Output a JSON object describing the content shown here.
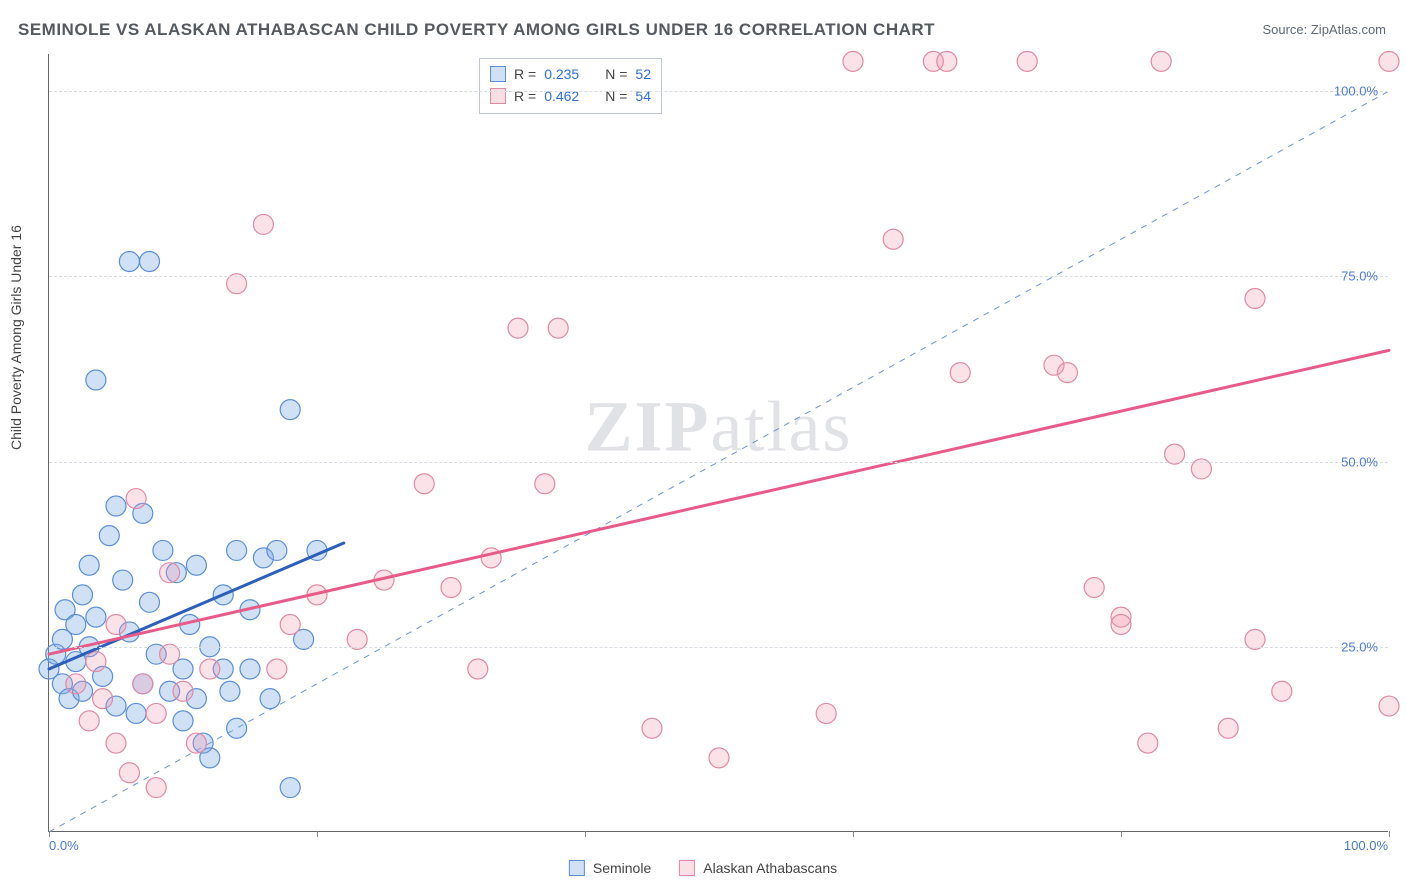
{
  "title": "SEMINOLE VS ALASKAN ATHABASCAN CHILD POVERTY AMONG GIRLS UNDER 16 CORRELATION CHART",
  "source": "Source: ZipAtlas.com",
  "ylabel": "Child Poverty Among Girls Under 16",
  "watermark": "ZIPatlas",
  "chart": {
    "type": "scatter",
    "background_color": "#ffffff",
    "grid_color": "#d8dde3",
    "axis_color": "#666666",
    "tick_label_color": "#4a7bd0",
    "xlim": [
      0,
      100
    ],
    "ylim": [
      0,
      105
    ],
    "xtick_positions": [
      0,
      20,
      40,
      60,
      80,
      100
    ],
    "xtick_labels": {
      "0": "0.0%",
      "100": "100.0%"
    },
    "ytick_positions": [
      25,
      50,
      75,
      100
    ],
    "ytick_labels": {
      "25": "25.0%",
      "50": "50.0%",
      "75": "75.0%",
      "100": "100.0%"
    },
    "marker_radius": 10,
    "marker_stroke_width": 1.2,
    "diagonal_line": {
      "color": "#6a93d8",
      "dash": "6 6",
      "width": 1,
      "from": [
        0,
        0
      ],
      "to": [
        100,
        100
      ]
    },
    "series": [
      {
        "name": "Seminole",
        "label": "Seminole",
        "fill": "rgba(120,170,230,0.35)",
        "stroke": "#5a8fd6",
        "stats": {
          "R": "0.235",
          "N": "52"
        },
        "trend": {
          "color": "#2b5fb8",
          "width": 3,
          "from": [
            0,
            22
          ],
          "to": [
            22,
            39
          ]
        },
        "points": [
          [
            0,
            22
          ],
          [
            0.5,
            24
          ],
          [
            1,
            20
          ],
          [
            1,
            26
          ],
          [
            1.2,
            30
          ],
          [
            1.5,
            18
          ],
          [
            2,
            23
          ],
          [
            2,
            28
          ],
          [
            2.5,
            32
          ],
          [
            2.5,
            19
          ],
          [
            3,
            25
          ],
          [
            3,
            36
          ],
          [
            3.5,
            29
          ],
          [
            3.5,
            61
          ],
          [
            4,
            21
          ],
          [
            4.5,
            40
          ],
          [
            5,
            17
          ],
          [
            5,
            44
          ],
          [
            5.5,
            34
          ],
          [
            6,
            27
          ],
          [
            6,
            77
          ],
          [
            6.5,
            16
          ],
          [
            7,
            43
          ],
          [
            7,
            20
          ],
          [
            7.5,
            31
          ],
          [
            7.5,
            77
          ],
          [
            8,
            24
          ],
          [
            8.5,
            38
          ],
          [
            9,
            19
          ],
          [
            9.5,
            35
          ],
          [
            10,
            15
          ],
          [
            10,
            22
          ],
          [
            10.5,
            28
          ],
          [
            11,
            36
          ],
          [
            11,
            18
          ],
          [
            11.5,
            12
          ],
          [
            12,
            10
          ],
          [
            12,
            25
          ],
          [
            13,
            22
          ],
          [
            13,
            32
          ],
          [
            13.5,
            19
          ],
          [
            14,
            38
          ],
          [
            14,
            14
          ],
          [
            15,
            30
          ],
          [
            15,
            22
          ],
          [
            16,
            37
          ],
          [
            16.5,
            18
          ],
          [
            17,
            38
          ],
          [
            18,
            57
          ],
          [
            18,
            6
          ],
          [
            19,
            26
          ],
          [
            20,
            38
          ]
        ]
      },
      {
        "name": "Alaskan Athabascans",
        "label": "Alaskan Athabascans",
        "fill": "rgba(240,150,175,0.28)",
        "stroke": "#e08aa5",
        "stats": {
          "R": "0.462",
          "N": "54"
        },
        "trend": {
          "color": "#e85b89",
          "width": 3,
          "from": [
            0,
            24
          ],
          "to": [
            100,
            65
          ]
        },
        "points": [
          [
            2,
            20
          ],
          [
            3,
            15
          ],
          [
            3.5,
            23
          ],
          [
            4,
            18
          ],
          [
            5,
            12
          ],
          [
            5,
            28
          ],
          [
            6,
            8
          ],
          [
            6.5,
            45
          ],
          [
            7,
            20
          ],
          [
            8,
            16
          ],
          [
            8,
            6
          ],
          [
            9,
            24
          ],
          [
            9,
            35
          ],
          [
            10,
            19
          ],
          [
            11,
            12
          ],
          [
            12,
            22
          ],
          [
            14,
            74
          ],
          [
            16,
            82
          ],
          [
            17,
            22
          ],
          [
            18,
            28
          ],
          [
            20,
            32
          ],
          [
            23,
            26
          ],
          [
            25,
            34
          ],
          [
            28,
            47
          ],
          [
            30,
            33
          ],
          [
            32,
            22
          ],
          [
            33,
            37
          ],
          [
            35,
            68
          ],
          [
            37,
            47
          ],
          [
            38,
            68
          ],
          [
            45,
            14
          ],
          [
            50,
            10
          ],
          [
            58,
            16
          ],
          [
            60,
            104
          ],
          [
            63,
            80
          ],
          [
            66,
            104
          ],
          [
            67,
            104
          ],
          [
            68,
            62
          ],
          [
            73,
            104
          ],
          [
            75,
            63
          ],
          [
            76,
            62
          ],
          [
            78,
            33
          ],
          [
            80,
            29
          ],
          [
            80,
            28
          ],
          [
            82,
            12
          ],
          [
            83,
            104
          ],
          [
            84,
            51
          ],
          [
            86,
            49
          ],
          [
            88,
            14
          ],
          [
            90,
            72
          ],
          [
            90,
            26
          ],
          [
            92,
            19
          ],
          [
            100,
            104
          ],
          [
            100,
            17
          ]
        ]
      }
    ],
    "legend_stats_box": {
      "border_color": "#bfc8d2",
      "font_size": 14
    },
    "bottom_legend": {
      "font_size": 14
    }
  }
}
